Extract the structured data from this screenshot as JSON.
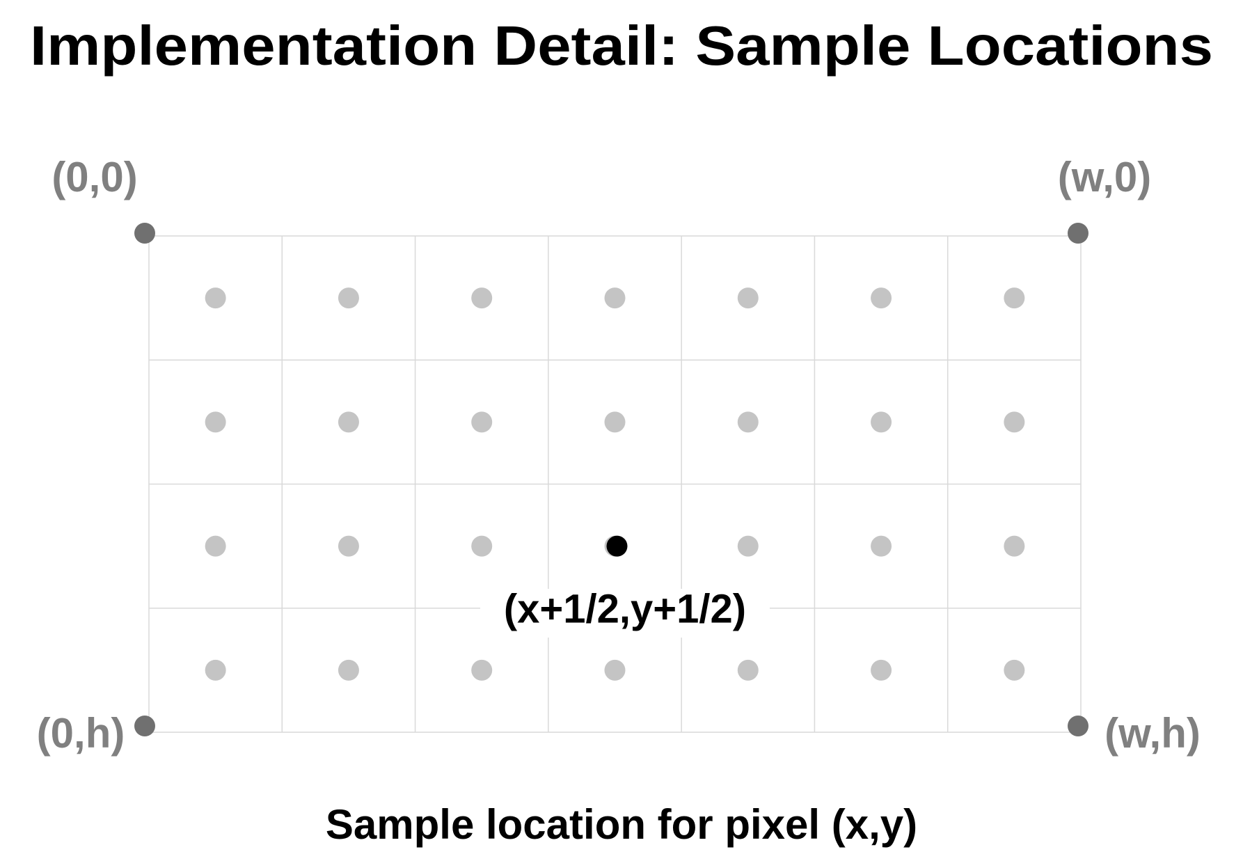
{
  "title": "Implementation Detail: Sample Locations",
  "corners": {
    "top_left": "(0,0)",
    "top_right": "(w,0)",
    "bottom_left": "(0,h)",
    "bottom_right": "(w,h)"
  },
  "sample_label": "(x+1/2,y+1/2)",
  "caption": "Sample location for pixel (x,y)"
}
